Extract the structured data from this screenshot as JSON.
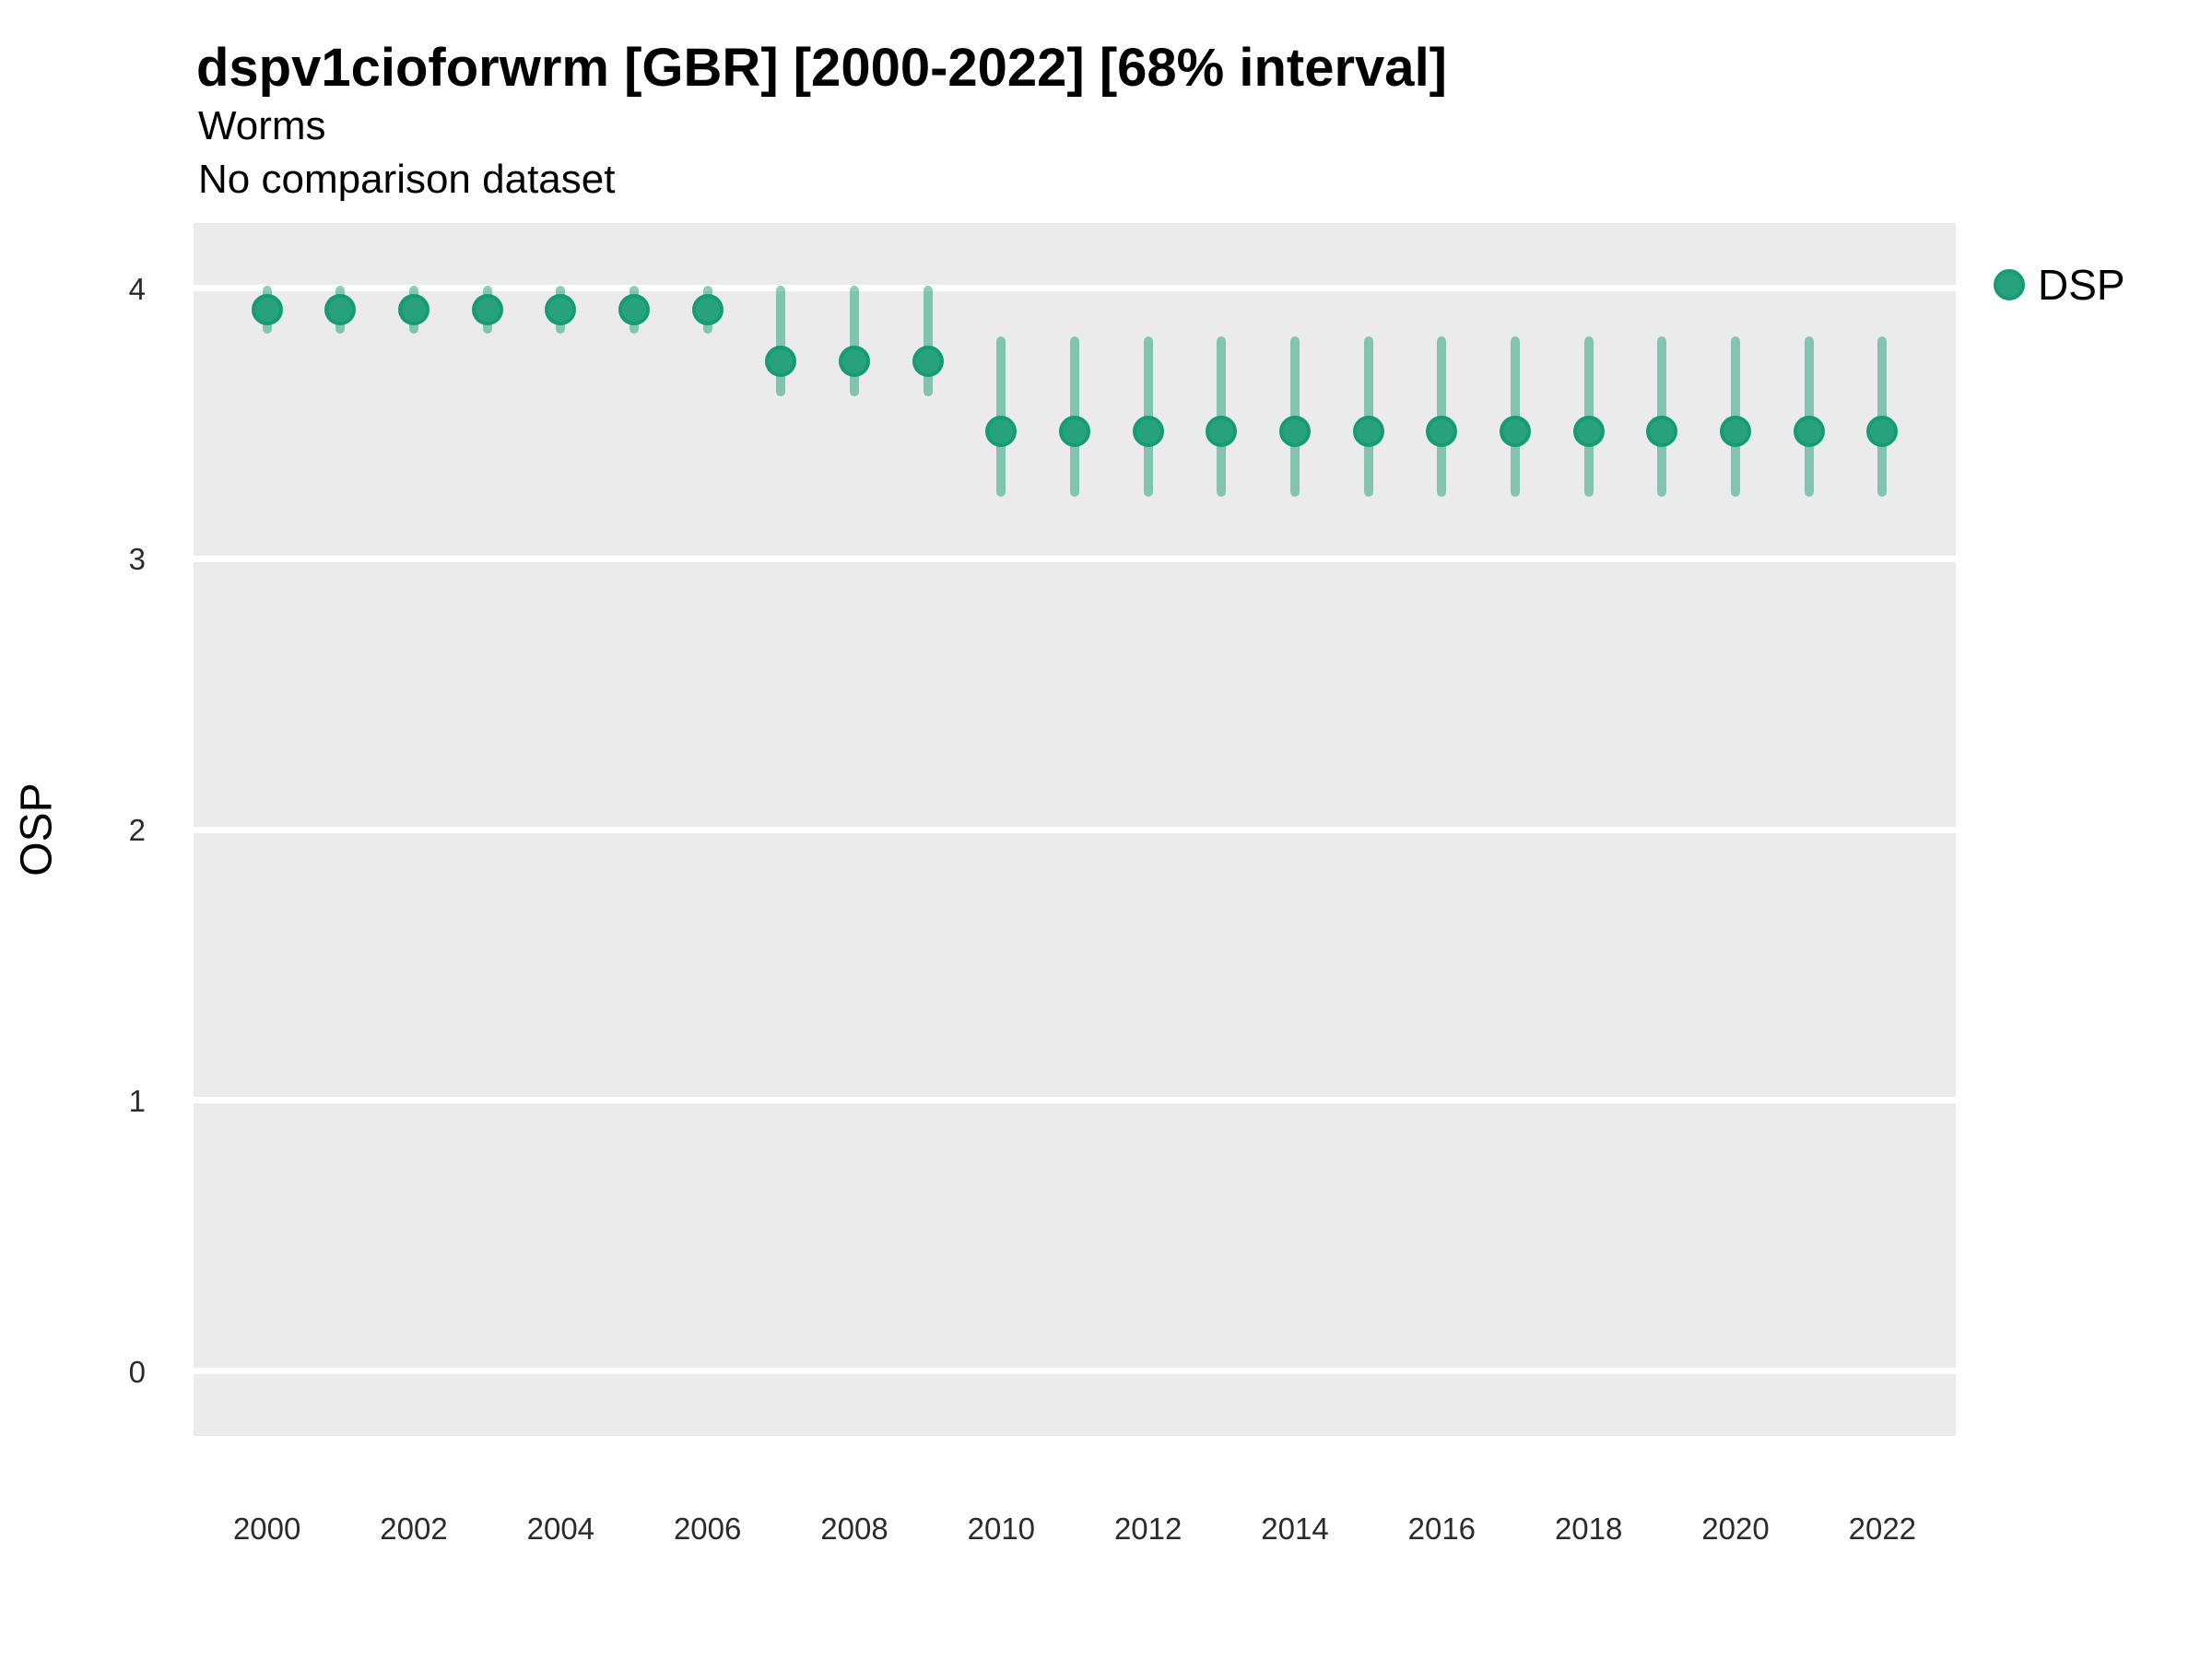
{
  "header": {
    "title": "dspv1cioforwrm [GBR] [2000-2022] [68% interval]",
    "subtitle1": "Worms",
    "subtitle2": "No comparison dataset"
  },
  "legend": {
    "label": "DSP"
  },
  "axes": {
    "y_title": "OSP",
    "x_title": ""
  },
  "colors": {
    "point_fill": "#28a27d",
    "point_border": "#169c72",
    "interval": "rgba(27,158,119,0.5)",
    "panel_background": "#EBEBEB",
    "gridline": "#FFFFFF",
    "text": "#000000"
  },
  "chart_data": {
    "type": "scatter",
    "subtype": "pointrange",
    "title": "dspv1cioforwrm [GBR] [2000-2022] [68% interval]",
    "subtitle": [
      "Worms",
      "No comparison dataset"
    ],
    "xlabel": "",
    "ylabel": "OSP",
    "interval_level": "68%",
    "legend_position": "right-top",
    "grid": "horizontal-major-only",
    "xlim": [
      1999,
      2023
    ],
    "ylim": [
      -0.24,
      4.24
    ],
    "xticks": [
      2000,
      2002,
      2004,
      2006,
      2008,
      2010,
      2012,
      2014,
      2016,
      2018,
      2020,
      2022
    ],
    "yticks": [
      0,
      1,
      2,
      3,
      4
    ],
    "series": [
      {
        "name": "DSP",
        "x": [
          2000,
          2001,
          2002,
          2003,
          2004,
          2005,
          2006,
          2007,
          2008,
          2009,
          2010,
          2011,
          2012,
          2013,
          2014,
          2015,
          2016,
          2017,
          2018,
          2019,
          2020,
          2021,
          2022
        ],
        "mid": [
          3.92,
          3.92,
          3.92,
          3.92,
          3.92,
          3.92,
          3.92,
          3.73,
          3.73,
          3.73,
          3.47,
          3.47,
          3.47,
          3.47,
          3.47,
          3.47,
          3.47,
          3.47,
          3.47,
          3.47,
          3.47,
          3.47,
          3.47
        ],
        "lower": [
          3.83,
          3.83,
          3.83,
          3.83,
          3.83,
          3.83,
          3.83,
          3.6,
          3.6,
          3.6,
          3.23,
          3.23,
          3.23,
          3.23,
          3.23,
          3.23,
          3.23,
          3.23,
          3.23,
          3.23,
          3.23,
          3.23,
          3.23
        ],
        "upper": [
          4.01,
          4.01,
          4.01,
          4.01,
          4.01,
          4.01,
          4.01,
          4.01,
          4.01,
          4.01,
          3.82,
          3.82,
          3.82,
          3.82,
          3.82,
          3.82,
          3.82,
          3.82,
          3.82,
          3.82,
          3.82,
          3.82,
          3.82
        ]
      }
    ]
  }
}
